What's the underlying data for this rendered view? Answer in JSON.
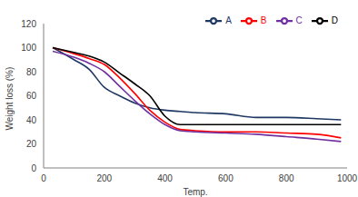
{
  "chart_data": {
    "type": "line",
    "x_label": "Temp.",
    "y_label": "Weight loss (%)",
    "x": [
      30,
      100,
      150,
      200,
      250,
      300,
      350,
      400,
      450,
      500,
      600,
      700,
      800,
      900,
      980
    ],
    "series": [
      {
        "name": "A",
        "color": "#1f3864",
        "values": [
          100,
          90,
          82,
          67,
          60,
          54,
          50,
          48,
          47,
          46,
          45,
          42,
          42,
          41,
          40
        ]
      },
      {
        "name": "B",
        "color": "#ff0000",
        "values": [
          100,
          95,
          91,
          86,
          75,
          62,
          48,
          38,
          32,
          31,
          30,
          30,
          29,
          28,
          25
        ]
      },
      {
        "name": "C",
        "color": "#7030a0",
        "values": [
          97,
          92,
          87,
          80,
          68,
          56,
          45,
          36,
          31,
          30,
          29,
          28,
          26,
          24,
          22
        ]
      },
      {
        "name": "D",
        "color": "#000000",
        "values": [
          100,
          96,
          93,
          88,
          79,
          70,
          60,
          43,
          36,
          36,
          36,
          36,
          36,
          36,
          36
        ]
      }
    ],
    "xlim": [
      0,
      1000
    ],
    "xticks": [
      0,
      200,
      400,
      600,
      800,
      1000
    ],
    "ylim": [
      0,
      120
    ],
    "yticks": [
      0,
      20,
      40,
      60,
      80,
      100,
      120
    ],
    "grid": false,
    "legend": "top-right"
  }
}
